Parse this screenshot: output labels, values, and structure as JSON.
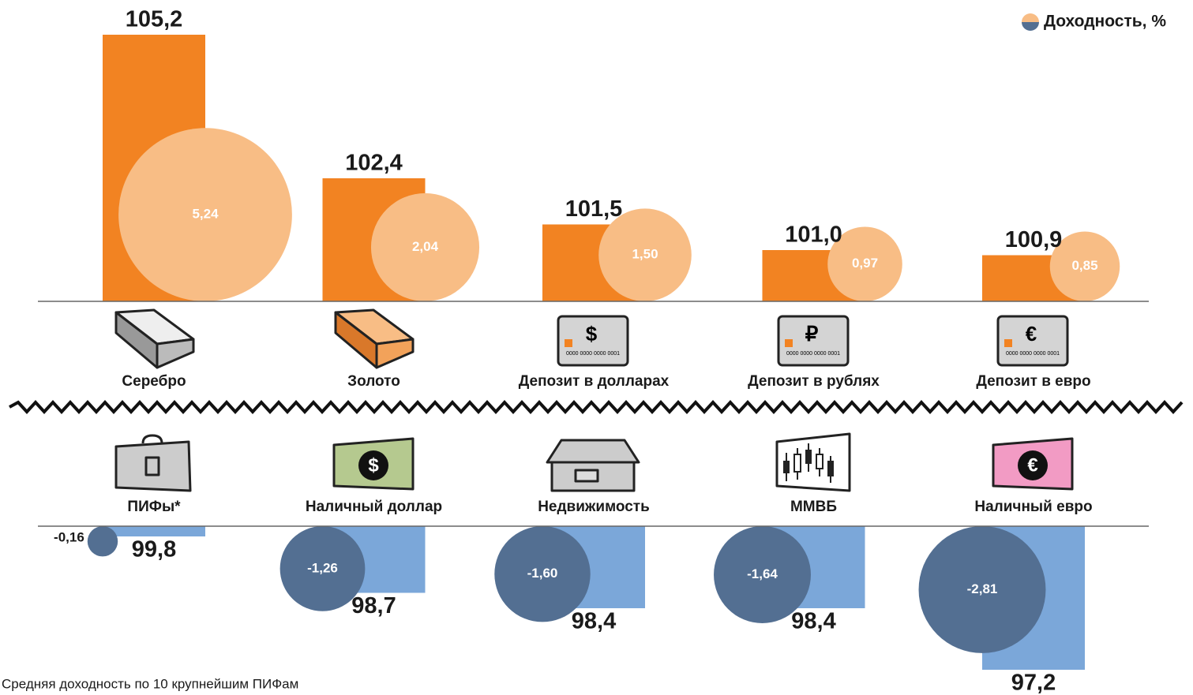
{
  "legend": "Доходность, %",
  "footnote": "Средняя доходность по 10 крупнейшим ПИФам",
  "card_symbols": [
    "$",
    "₽",
    "€"
  ],
  "card_number": "0000 0000 0000 0001",
  "bill_symbols": [
    "$",
    "€"
  ],
  "chart_data": [
    {
      "type": "bar",
      "categories": [
        "Серебро",
        "Золото",
        "Депозит в долларах",
        "Депозит в рублях",
        "Депозит в евро"
      ],
      "values": [
        105.2,
        102.4,
        101.5,
        101.0,
        100.9
      ],
      "value_labels": [
        "105,2",
        "102,4",
        "101,5",
        "101,0",
        "100,9"
      ],
      "color": "#f28322",
      "ylim": [
        100,
        106
      ],
      "bubbles": {
        "values": [
          5.24,
          2.04,
          1.5,
          0.97,
          0.85
        ],
        "value_labels": [
          "5,24",
          "2,04",
          "1,50",
          "0,97",
          "0,85"
        ],
        "color": "#f8bd85"
      }
    },
    {
      "type": "bar",
      "categories": [
        "ПИФы*",
        "Наличный доллар",
        "Недвижимость",
        "ММВБ",
        "Наличный евро"
      ],
      "values": [
        99.8,
        98.7,
        98.4,
        98.4,
        97.2
      ],
      "value_labels": [
        "99,8",
        "98,7",
        "98,4",
        "98,4",
        "97,2"
      ],
      "color": "#7ba7d9",
      "ylim": [
        97,
        100
      ],
      "bubbles": {
        "values": [
          -0.16,
          -1.26,
          -1.6,
          -1.64,
          -2.81
        ],
        "value_labels": [
          "-0,16",
          "-1,26",
          "-1,60",
          "-1,64",
          "-2,81"
        ],
        "color": "#536f92"
      }
    }
  ]
}
